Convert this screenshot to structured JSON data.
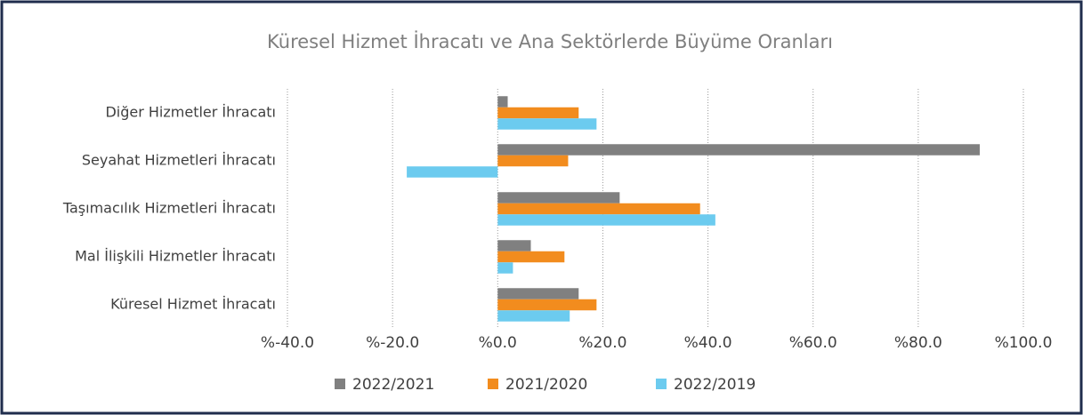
{
  "chart_data": {
    "type": "hbar",
    "title": "Küresel Hizmet İhracatı ve Ana Sektörlerde Büyüme Oranları",
    "categories": [
      "Diğer Hizmetler İhracatı",
      "Seyahat Hizmetleri İhracatı",
      "Taşımacılık Hizmetleri İhracatı",
      "Mal İlişkili Hizmetler İhracatı",
      "Küresel Hizmet İhracatı"
    ],
    "series": [
      {
        "name": "2022/2021",
        "color": "#808080",
        "values": [
          1.9,
          91.7,
          23.2,
          6.3,
          15.4
        ]
      },
      {
        "name": "2021/2020",
        "color": "#f28c1e",
        "values": [
          15.4,
          13.4,
          38.5,
          12.7,
          18.8
        ]
      },
      {
        "name": "2022/2019",
        "color": "#6ccbef",
        "values": [
          18.8,
          -17.3,
          41.4,
          2.9,
          13.7
        ]
      }
    ],
    "xlim": [
      -40,
      100
    ],
    "xticks": [
      {
        "value": -40,
        "label": "%-40.0"
      },
      {
        "value": -20,
        "label": "%-20.0"
      },
      {
        "value": 0,
        "label": "%0.0"
      },
      {
        "value": 20,
        "label": "%20.0"
      },
      {
        "value": 40,
        "label": "%40.0"
      },
      {
        "value": 60,
        "label": "%60.0"
      },
      {
        "value": 80,
        "label": "%80.0"
      },
      {
        "value": 100,
        "label": "%100.0"
      }
    ],
    "grid": true,
    "legend": "bottom"
  }
}
